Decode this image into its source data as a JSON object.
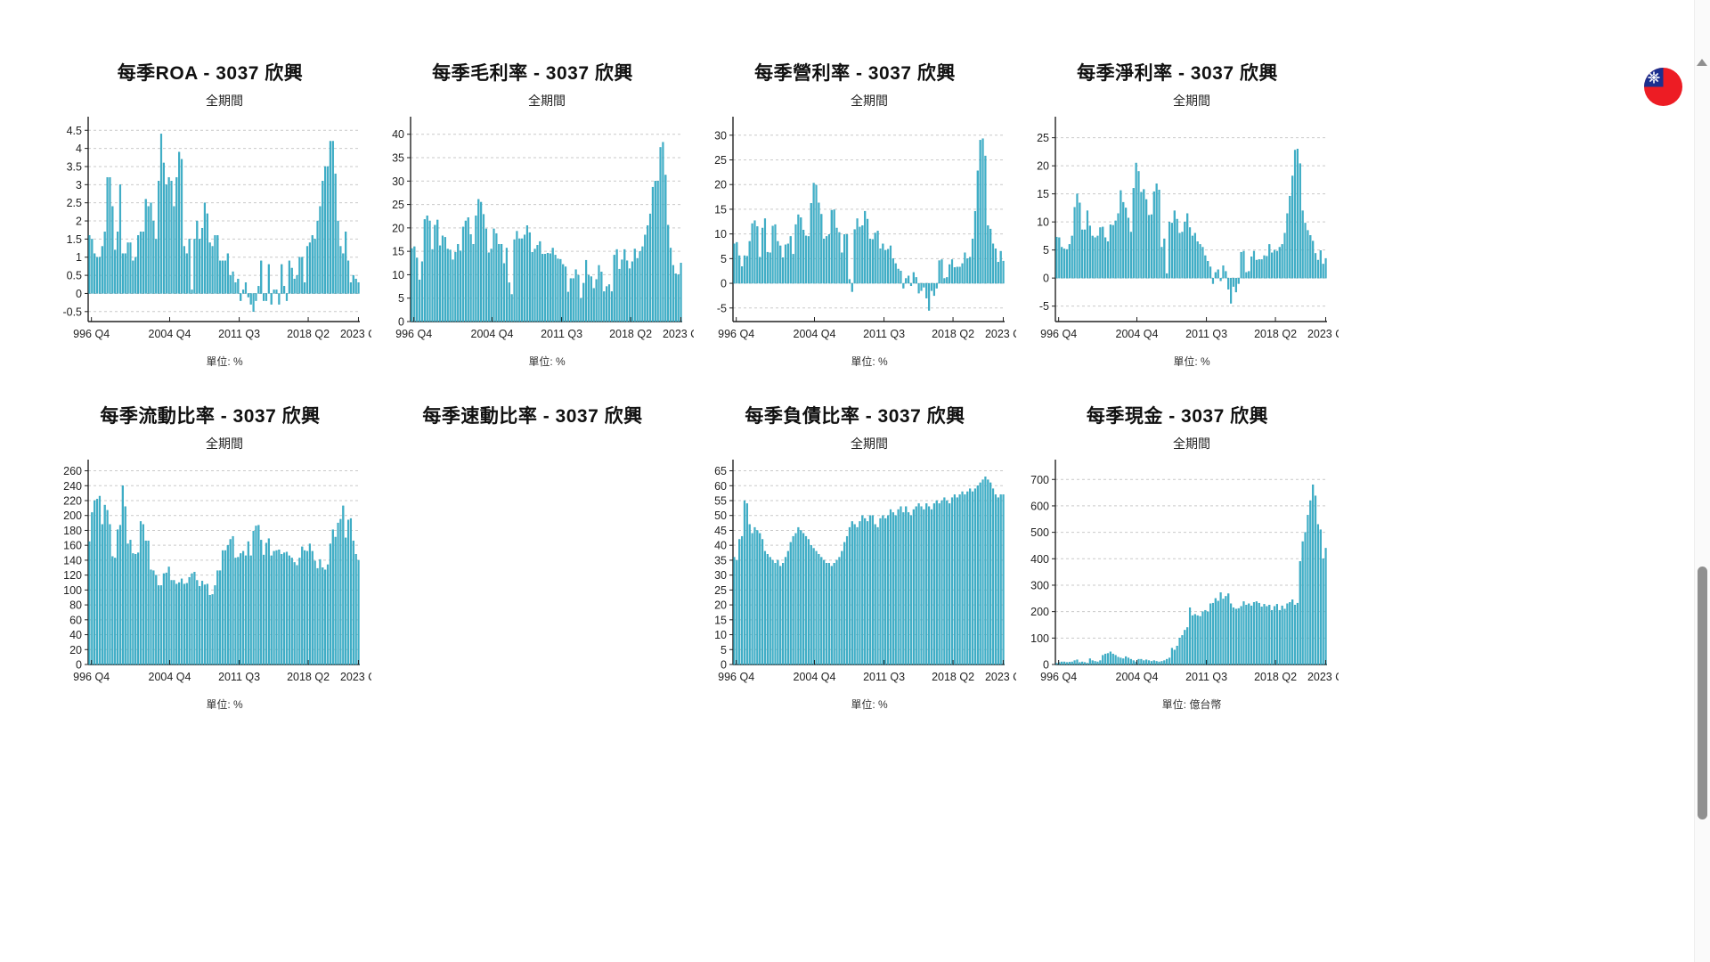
{
  "stock": "3037 欣興",
  "x_tick_labels": [
    "996 Q4",
    "2004 Q4",
    "2011 Q3",
    "2018 Q2",
    "2023 Q"
  ],
  "colors": {
    "bar": "#3FB0C9",
    "bar_edge": "#2E9FB8",
    "grid": "#c9c9c9",
    "axis": "#222222",
    "scrollbar_thumb": "#909090",
    "flag_red": "#ed1c24",
    "flag_blue": "#1b2f8f"
  },
  "chart_data": [
    {
      "type": "bar",
      "title": "每季ROA - 3037 欣興",
      "subtitle": "全期間",
      "unit": "單位: %",
      "x_tick_labels": [
        "996 Q4",
        "2004 Q4",
        "2011 Q3",
        "2018 Q2",
        "2023 Q"
      ],
      "y_axis": {
        "min": -0.5,
        "max": 4.5,
        "step": 0.5
      },
      "values": [
        1.6,
        1.5,
        1.1,
        1.0,
        1.0,
        1.3,
        1.7,
        3.2,
        3.2,
        2.4,
        1.2,
        1.7,
        3.0,
        1.1,
        1.1,
        1.4,
        1.4,
        0.9,
        1.0,
        1.6,
        1.7,
        1.7,
        2.6,
        2.4,
        2.5,
        2.0,
        1.5,
        3.1,
        4.4,
        3.6,
        3.0,
        3.2,
        3.1,
        2.4,
        3.2,
        3.9,
        3.7,
        1.3,
        1.1,
        1.5,
        0.1,
        1.5,
        2.0,
        1.5,
        1.8,
        2.5,
        2.2,
        1.4,
        1.3,
        1.6,
        1.6,
        0.9,
        0.9,
        0.9,
        1.1,
        0.5,
        0.6,
        0.3,
        0.4,
        -0.2,
        0.1,
        0.3,
        -0.1,
        -0.3,
        -0.5,
        -0.2,
        0.2,
        0.9,
        -0.2,
        -0.2,
        0.8,
        -0.3,
        0.1,
        0.1,
        -0.3,
        0.8,
        0.2,
        -0.2,
        0.9,
        0.7,
        0.4,
        0.5,
        1.0,
        1.0,
        0.3,
        1.3,
        1.4,
        1.6,
        1.5,
        2.0,
        2.4,
        3.1,
        3.5,
        3.5,
        4.2,
        4.2,
        3.3,
        2.0,
        1.3,
        1.1,
        1.7,
        0.9,
        0.3,
        0.5,
        0.4,
        0.3
      ]
    },
    {
      "type": "bar",
      "title": "每季毛利率 - 3037 欣興",
      "subtitle": "全期間",
      "unit": "單位: %",
      "x_tick_labels": [
        "996 Q4",
        "2004 Q4",
        "2011 Q3",
        "2018 Q2",
        "2023 Q"
      ],
      "y_axis": {
        "min": 0,
        "max": 40,
        "step": 5
      },
      "values": [
        15.6,
        16.0,
        13.6,
        8.9,
        12.8,
        21.8,
        22.6,
        21.5,
        15.4,
        20.6,
        21.7,
        16.2,
        18.3,
        18.0,
        15.5,
        15.3,
        13.2,
        14.8,
        16.5,
        15.1,
        20.2,
        21.5,
        22.2,
        18.6,
        16.5,
        22.6,
        26.1,
        25.5,
        22.9,
        19.8,
        14.7,
        15.5,
        19.8,
        18.8,
        16.5,
        16.5,
        12.4,
        15.7,
        8.3,
        5.8,
        17.5,
        19.3,
        17.7,
        17.7,
        18.5,
        20.5,
        19.0,
        14.8,
        15.5,
        16.3,
        17.1,
        14.4,
        14.4,
        14.6,
        14.5,
        15.7,
        14.2,
        13.4,
        13.3,
        12.2,
        11.7,
        6.3,
        9.2,
        9.2,
        11.1,
        9.9,
        5.0,
        8.2,
        13.1,
        9.9,
        9.6,
        7.1,
        9.0,
        12.0,
        10.6,
        6.4,
        7.5,
        7.9,
        6.4,
        14.2,
        15.4,
        11.2,
        13.2,
        15.4,
        13.0,
        11.3,
        12.8,
        15.5,
        13.5,
        15.0,
        16.0,
        18.5,
        20.5,
        23.0,
        28.7,
        30.0,
        30.0,
        37.2,
        38.3,
        31.3,
        20.6,
        15.7,
        12.0,
        10.2,
        10.0,
        12.5
      ]
    },
    {
      "type": "bar",
      "title": "每季營利率 - 3037 欣興",
      "subtitle": "全期間",
      "unit": "單位: %",
      "x_tick_labels": [
        "996 Q4",
        "2004 Q4",
        "2011 Q3",
        "2018 Q2",
        "2023 Q"
      ],
      "y_axis": {
        "min": -5,
        "max": 30,
        "step": 5
      },
      "values": [
        8.0,
        8.3,
        5.6,
        3.4,
        5.6,
        5.5,
        8.5,
        12.1,
        12.7,
        11.5,
        5.3,
        11.2,
        13.1,
        6.3,
        6.2,
        11.6,
        11.9,
        8.5,
        7.6,
        5.2,
        7.8,
        8.0,
        9.5,
        5.9,
        11.9,
        13.9,
        13.3,
        10.8,
        9.6,
        9.5,
        16.2,
        20.3,
        19.9,
        16.3,
        14.0,
        9.0,
        9.5,
        9.9,
        14.8,
        14.9,
        11.2,
        10.3,
        6.2,
        9.9,
        9.9,
        0.8,
        -1.7,
        10.9,
        13.1,
        11.4,
        11.7,
        14.6,
        13.0,
        9.0,
        8.9,
        10.2,
        10.6,
        7.0,
        8.0,
        6.7,
        6.9,
        7.6,
        5.0,
        4.0,
        2.9,
        2.5,
        -1.0,
        1.0,
        1.5,
        -0.5,
        2.2,
        1.2,
        -2.0,
        -1.5,
        -0.8,
        -3.0,
        -5.5,
        -1.5,
        -2.5,
        -1.0,
        4.6,
        4.8,
        1.0,
        1.2,
        3.8,
        4.8,
        3.2,
        3.3,
        3.3,
        4.0,
        6.2,
        5.0,
        5.3,
        9.0,
        14.6,
        22.8,
        29.0,
        29.3,
        25.8,
        11.7,
        11.0,
        8.0,
        7.0,
        4.3,
        6.5,
        4.5
      ]
    },
    {
      "type": "bar",
      "title": "每季淨利率 - 3037 欣興",
      "subtitle": "全期間",
      "unit": "單位: %",
      "x_tick_labels": [
        "996 Q4",
        "2004 Q4",
        "2011 Q3",
        "2018 Q2",
        "2023 Q"
      ],
      "y_axis": {
        "min": -5,
        "max": 25,
        "step": 5
      },
      "values": [
        7.3,
        7.2,
        5.5,
        5.2,
        5.1,
        6.0,
        7.5,
        12.6,
        15.0,
        13.4,
        8.6,
        8.6,
        12.0,
        9.3,
        7.5,
        7.2,
        7.5,
        9.0,
        9.1,
        7.2,
        6.5,
        9.5,
        9.4,
        10.2,
        11.5,
        15.6,
        13.5,
        12.5,
        10.7,
        8.2,
        16.0,
        20.5,
        19.0,
        15.3,
        15.8,
        14.0,
        11.2,
        11.3,
        15.4,
        16.8,
        15.7,
        5.5,
        7.0,
        0.8,
        10.0,
        9.8,
        12.0,
        10.5,
        8.0,
        8.2,
        10.0,
        11.5,
        9.0,
        7.5,
        8.0,
        6.5,
        6.0,
        5.5,
        4.0,
        3.0,
        2.0,
        -1.0,
        1.0,
        1.5,
        -0.5,
        2.2,
        1.2,
        -2.0,
        -4.5,
        -1.5,
        -2.5,
        -1.0,
        4.6,
        4.8,
        1.0,
        1.2,
        3.8,
        4.8,
        3.2,
        3.3,
        3.3,
        4.0,
        3.9,
        6.0,
        4.5,
        5.0,
        4.8,
        5.5,
        6.0,
        8.0,
        11.5,
        14.6,
        18.2,
        22.8,
        23.0,
        20.4,
        12.0,
        9.8,
        8.5,
        7.6,
        6.6,
        4.4,
        3.2,
        4.9,
        2.5,
        3.5
      ]
    },
    {
      "type": "bar",
      "title": "每季流動比率 - 3037 欣興",
      "subtitle": "全期間",
      "unit": "單位: %",
      "x_tick_labels": [
        "996 Q4",
        "2004 Q4",
        "2011 Q3",
        "2018 Q2",
        "2023 Q"
      ],
      "y_axis": {
        "min": 0,
        "max": 260,
        "step": 20
      },
      "values": [
        165,
        204,
        220,
        222,
        226,
        188,
        214,
        207,
        188,
        145,
        143,
        181,
        187,
        240,
        212,
        162,
        167,
        149,
        148,
        150,
        192,
        188,
        166,
        166,
        127,
        126,
        120,
        106,
        106,
        122,
        123,
        131,
        113,
        113,
        108,
        110,
        115,
        108,
        109,
        117,
        122,
        124,
        113,
        105,
        112,
        107,
        108,
        93,
        94,
        106,
        126,
        126,
        153,
        153,
        160,
        168,
        172,
        143,
        144,
        149,
        152,
        146,
        165,
        146,
        179,
        186,
        187,
        167,
        147,
        163,
        169,
        146,
        152,
        153,
        154,
        148,
        150,
        151,
        146,
        143,
        137,
        133,
        143,
        158,
        153,
        152,
        162,
        152,
        139,
        129,
        141,
        130,
        127,
        134,
        162,
        181,
        171,
        190,
        195,
        213,
        170,
        194,
        196,
        166,
        148,
        140
      ]
    },
    {
      "type": "bar",
      "title": "每季速動比率 - 3037 欣興",
      "empty": true
    },
    {
      "type": "bar",
      "title": "每季負債比率 - 3037 欣興",
      "subtitle": "全期間",
      "unit": "單位: %",
      "x_tick_labels": [
        "996 Q4",
        "2004 Q4",
        "2011 Q3",
        "2018 Q2",
        "2023 Q"
      ],
      "y_axis": {
        "min": 0,
        "max": 65,
        "step": 5
      },
      "values": [
        36,
        35,
        42,
        43,
        55,
        54,
        47,
        44,
        46,
        45,
        44,
        42,
        38,
        37,
        36,
        35,
        34,
        35,
        33,
        34,
        36,
        38,
        41,
        43,
        44,
        46,
        45,
        44,
        43,
        42,
        40,
        39,
        38,
        37,
        36,
        35,
        34,
        34,
        33,
        34,
        35,
        36,
        38,
        41,
        43,
        46,
        48,
        47,
        46,
        48,
        50,
        49,
        48,
        50,
        50,
        47,
        46,
        49,
        50,
        49,
        50,
        52,
        51,
        50,
        52,
        53,
        51,
        53,
        51,
        50,
        52,
        53,
        54,
        53,
        52,
        54,
        53,
        52,
        54,
        55,
        54,
        55,
        56,
        55,
        54,
        56,
        57,
        56,
        57,
        58,
        57,
        58,
        59,
        58,
        59,
        60,
        61,
        62,
        63,
        62,
        61,
        59,
        57,
        56,
        57,
        57
      ]
    },
    {
      "type": "bar",
      "title": "每季現金 - 3037 欣興",
      "subtitle": "全期間",
      "unit": "單位: 億台幣",
      "x_tick_labels": [
        "996 Q4",
        "2004 Q4",
        "2011 Q3",
        "2018 Q2",
        "2023 Q"
      ],
      "y_axis": {
        "min": 0,
        "max": 700,
        "step": 100
      },
      "values": [
        5,
        8,
        10,
        10,
        8,
        9,
        10,
        15,
        18,
        8,
        10,
        8,
        5,
        22,
        15,
        12,
        10,
        15,
        35,
        40,
        42,
        48,
        40,
        35,
        28,
        25,
        22,
        30,
        25,
        20,
        15,
        10,
        20,
        20,
        15,
        18,
        15,
        12,
        15,
        12,
        10,
        12,
        15,
        20,
        25,
        62,
        55,
        70,
        100,
        110,
        130,
        140,
        215,
        185,
        190,
        185,
        182,
        200,
        205,
        200,
        230,
        232,
        250,
        240,
        272,
        248,
        258,
        268,
        230,
        215,
        210,
        212,
        220,
        238,
        225,
        230,
        222,
        235,
        238,
        232,
        218,
        228,
        220,
        225,
        205,
        220,
        228,
        205,
        222,
        210,
        230,
        235,
        245,
        225,
        232,
        390,
        465,
        500,
        565,
        620,
        680,
        638,
        530,
        510,
        400,
        440
      ]
    }
  ]
}
